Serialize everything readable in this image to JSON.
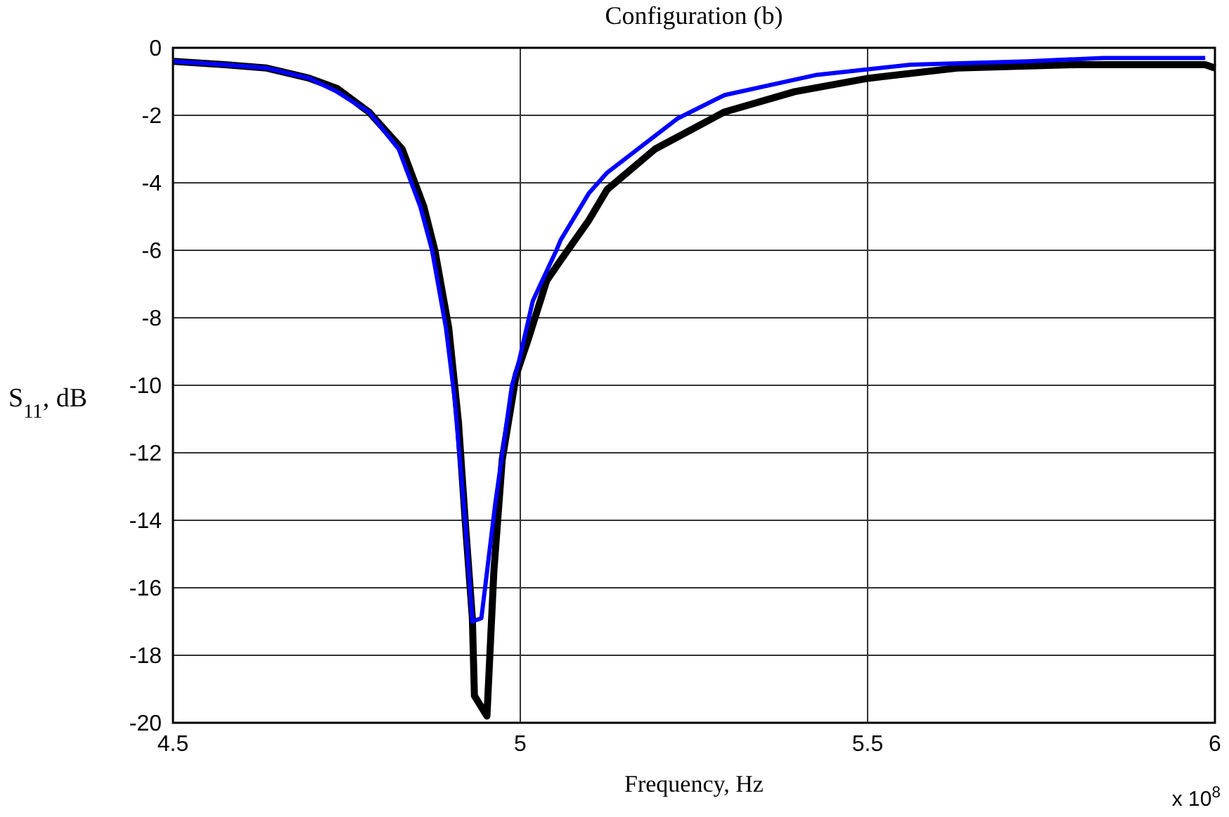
{
  "chart_data": {
    "type": "line",
    "title": "Configuration (b)",
    "xlabel": "Frequency, Hz",
    "ylabel": "S$_{11}$, dB",
    "annotations": [
      "x 10$^{8}$"
    ],
    "xlim": [
      4.5,
      6
    ],
    "xticks": [
      4.5,
      5,
      5.5,
      6
    ],
    "ylim": [
      -20,
      0
    ],
    "yticks": [
      -20,
      -18,
      -16,
      -14,
      -12,
      -10,
      -8,
      -6,
      -4,
      -2,
      0
    ],
    "grid": true,
    "line_style": "solid",
    "marker": "none",
    "series": [
      {
        "color": "#000000",
        "x": [
          4.5,
          4.575,
          4.635,
          4.696,
          4.736,
          4.782,
          4.83,
          4.861,
          4.877,
          4.897,
          4.911,
          4.921,
          4.931,
          4.934,
          4.952,
          4.962,
          4.974,
          4.994,
          5.012,
          5.038,
          5.058,
          5.099,
          5.125,
          5.194,
          5.294,
          5.395,
          5.502,
          5.629,
          5.798,
          5.986,
          6.0
        ],
        "values": [
          -0.4,
          -0.5,
          -0.6,
          -0.9,
          -1.2,
          -1.9,
          -3.0,
          -4.7,
          -6.0,
          -8.3,
          -11.1,
          -14.1,
          -16.9,
          -19.2,
          -19.8,
          -15.5,
          -12.2,
          -9.7,
          -8.6,
          -6.9,
          -6.3,
          -5.1,
          -4.2,
          -3.0,
          -1.9,
          -1.3,
          -0.9,
          -0.6,
          -0.5,
          -0.5,
          -0.6
        ]
      },
      {
        "color": "#0000ff",
        "x": [
          4.5,
          4.575,
          4.635,
          4.696,
          4.736,
          4.782,
          4.825,
          4.856,
          4.873,
          4.893,
          4.905,
          4.921,
          4.931,
          4.944,
          4.964,
          4.988,
          4.998,
          5.018,
          5.052,
          5.058,
          5.099,
          5.125,
          5.226,
          5.294,
          5.427,
          5.562,
          5.73,
          5.84,
          5.986
        ],
        "values": [
          -0.4,
          -0.5,
          -0.6,
          -0.9,
          -1.3,
          -1.9,
          -3.0,
          -4.7,
          -6.0,
          -8.3,
          -10.3,
          -14.1,
          -17.0,
          -16.9,
          -13.5,
          -10.0,
          -9.3,
          -7.5,
          -6.0,
          -5.7,
          -4.3,
          -3.7,
          -2.1,
          -1.4,
          -0.8,
          -0.5,
          -0.4,
          -0.3,
          -0.3
        ]
      }
    ]
  }
}
